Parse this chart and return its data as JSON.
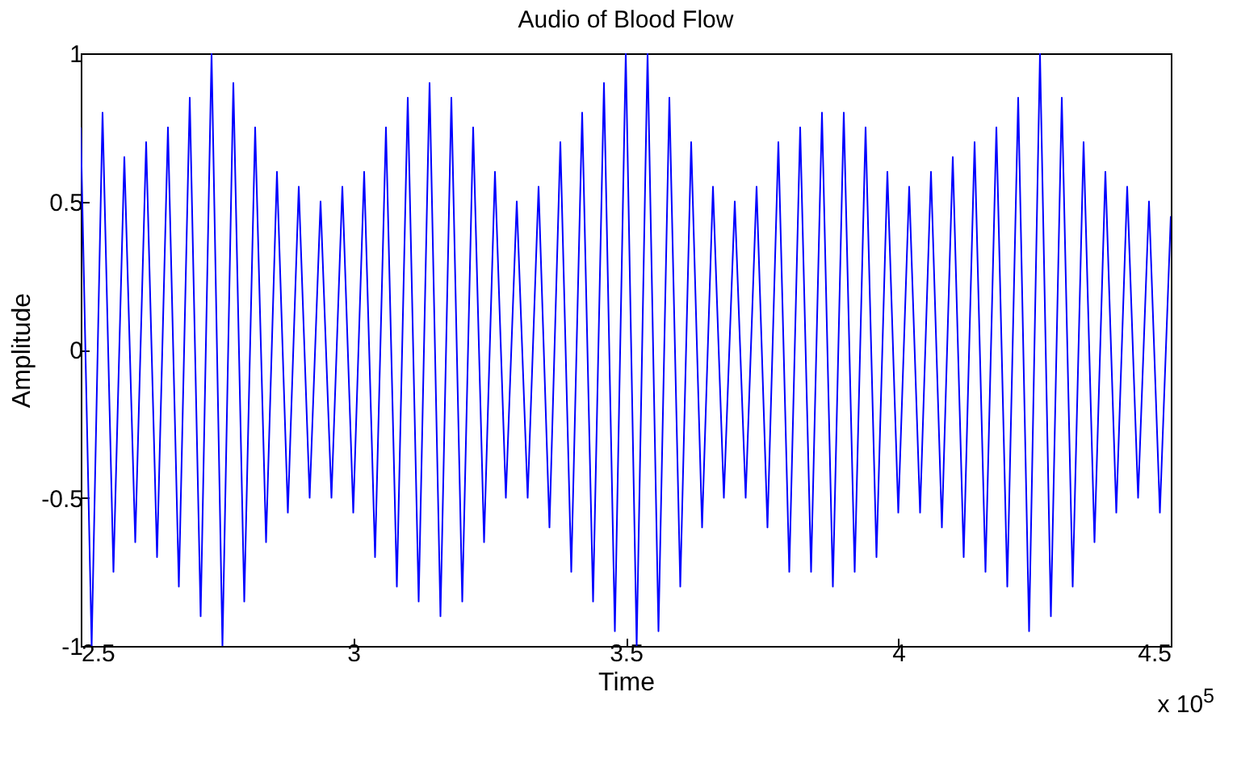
{
  "chart_data": {
    "type": "line",
    "title": "Audio of Blood Flow",
    "xlabel": "Time",
    "ylabel": "Amplitude",
    "annotations": [
      "x 10$^{5}$"
    ],
    "xlim": [
      2.5,
      4.5
    ],
    "xticks": [
      2.5,
      3,
      3.5,
      4,
      4.5
    ],
    "ylim": [
      -1,
      1
    ],
    "yticks": [
      -1,
      -0.5,
      0,
      0.5,
      1
    ],
    "grid": false,
    "legend": false,
    "x": [
      2.5,
      2.52,
      2.54,
      2.56,
      2.58,
      2.6,
      2.62,
      2.64,
      2.66,
      2.68,
      2.7,
      2.72,
      2.74,
      2.76,
      2.78,
      2.8,
      2.82,
      2.84,
      2.86,
      2.88,
      2.9,
      2.92,
      2.94,
      2.96,
      2.98,
      3.0,
      3.02,
      3.04,
      3.06,
      3.08,
      3.1,
      3.12,
      3.14,
      3.16,
      3.18,
      3.2,
      3.22,
      3.24,
      3.26,
      3.28,
      3.3,
      3.32,
      3.34,
      3.36,
      3.38,
      3.4,
      3.42,
      3.44,
      3.46,
      3.48,
      3.5,
      3.52,
      3.54,
      3.56,
      3.58,
      3.6,
      3.62,
      3.64,
      3.66,
      3.68,
      3.7,
      3.72,
      3.74,
      3.76,
      3.78,
      3.8,
      3.82,
      3.84,
      3.86,
      3.88,
      3.9,
      3.92,
      3.94,
      3.96,
      3.98,
      4.0,
      4.02,
      4.04,
      4.06,
      4.08,
      4.1,
      4.12,
      4.14,
      4.16,
      4.18,
      4.2,
      4.22,
      4.24,
      4.26,
      4.28,
      4.3,
      4.32,
      4.34,
      4.36,
      4.38,
      4.4,
      4.42,
      4.44,
      4.46,
      4.48,
      4.5
    ],
    "series": [
      {
        "color": "#0000ff",
        "values": [
          0.75,
          -1.0,
          0.8,
          -0.75,
          0.65,
          -0.65,
          0.7,
          -0.7,
          0.75,
          -0.8,
          0.85,
          -0.9,
          1.0,
          -1.0,
          0.9,
          -0.85,
          0.75,
          -0.65,
          0.6,
          -0.55,
          0.55,
          -0.5,
          0.5,
          -0.5,
          0.55,
          -0.55,
          0.6,
          -0.7,
          0.75,
          -0.8,
          0.85,
          -0.85,
          0.9,
          -0.9,
          0.85,
          -0.85,
          0.75,
          -0.65,
          0.6,
          -0.5,
          0.5,
          -0.5,
          0.55,
          -0.6,
          0.7,
          -0.75,
          0.8,
          -0.85,
          0.9,
          -0.95,
          1.0,
          -1.0,
          1.0,
          -0.95,
          0.85,
          -0.8,
          0.7,
          -0.6,
          0.55,
          -0.5,
          0.5,
          -0.5,
          0.55,
          -0.6,
          0.7,
          -0.75,
          0.75,
          -0.75,
          0.8,
          -0.8,
          0.8,
          -0.75,
          0.75,
          -0.7,
          0.6,
          -0.55,
          0.55,
          -0.55,
          0.6,
          -0.6,
          0.65,
          -0.7,
          0.7,
          -0.75,
          0.75,
          -0.8,
          0.85,
          -0.95,
          1.0,
          -0.9,
          0.85,
          -0.8,
          0.7,
          -0.65,
          0.6,
          -0.55,
          0.55,
          -0.5,
          0.5,
          -0.55,
          0.45
        ]
      }
    ]
  }
}
